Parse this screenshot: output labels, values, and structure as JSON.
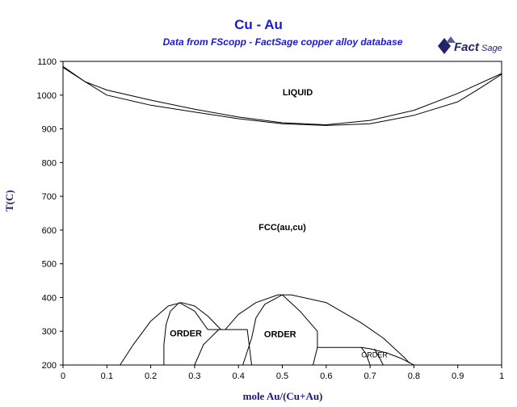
{
  "title": "Cu - Au",
  "subtitle": "Data from FScopp - FactSage copper alloy database",
  "logo": {
    "text": "FactSage",
    "icon": "factsage-logo-icon"
  },
  "chart_data": {
    "type": "line",
    "xlabel": "mole Au/(Cu+Au)",
    "ylabel": "T(C)",
    "xlim": [
      0,
      1
    ],
    "ylim": [
      200,
      1100
    ],
    "x_ticks": [
      "0",
      "0.1",
      "0.2",
      "0.3",
      "0.4",
      "0.5",
      "0.6",
      "0.7",
      "0.8",
      "0.9",
      "1"
    ],
    "y_ticks": [
      "200",
      "300",
      "400",
      "500",
      "600",
      "700",
      "800",
      "900",
      "1000",
      "1100"
    ],
    "grid": false,
    "line_color": "#000000",
    "region_labels": [
      {
        "text": "LIQUID",
        "x": 0.535,
        "y": 1000
      },
      {
        "text": "FCC(au,cu)",
        "x": 0.5,
        "y": 600
      },
      {
        "text": "ORDER",
        "x": 0.28,
        "y": 285
      },
      {
        "text": "ORDER",
        "x": 0.495,
        "y": 283
      },
      {
        "text": "ORDER",
        "x": 0.71,
        "y": 223
      }
    ],
    "series": [
      {
        "points": [
          [
            0,
            1085
          ],
          [
            0.05,
            1040
          ],
          [
            0.1,
            1015
          ],
          [
            0.2,
            985
          ],
          [
            0.3,
            958
          ],
          [
            0.4,
            935
          ],
          [
            0.5,
            918
          ],
          [
            0.6,
            912
          ],
          [
            0.7,
            925
          ],
          [
            0.8,
            955
          ],
          [
            0.9,
            1005
          ],
          [
            1,
            1064
          ]
        ]
      },
      {
        "points": [
          [
            0,
            1082
          ],
          [
            0.02,
            1065
          ],
          [
            0.05,
            1040
          ],
          [
            0.1,
            1000
          ],
          [
            0.2,
            970
          ],
          [
            0.3,
            950
          ],
          [
            0.4,
            930
          ],
          [
            0.5,
            915
          ],
          [
            0.6,
            910
          ],
          [
            0.7,
            915
          ],
          [
            0.8,
            940
          ],
          [
            0.9,
            980
          ],
          [
            0.95,
            1020
          ],
          [
            1,
            1062
          ]
        ]
      },
      {
        "points": [
          [
            0.13,
            200
          ],
          [
            0.16,
            260
          ],
          [
            0.2,
            330
          ],
          [
            0.24,
            375
          ],
          [
            0.27,
            385
          ],
          [
            0.3,
            375
          ],
          [
            0.33,
            345
          ],
          [
            0.36,
            305
          ]
        ]
      },
      {
        "points": [
          [
            0.23,
            200
          ],
          [
            0.23,
            260
          ],
          [
            0.235,
            320
          ],
          [
            0.245,
            360
          ],
          [
            0.265,
            385
          ]
        ]
      },
      {
        "points": [
          [
            0.265,
            385
          ],
          [
            0.3,
            360
          ],
          [
            0.33,
            305
          ],
          [
            0.42,
            305
          ],
          [
            0.43,
            200
          ]
        ]
      },
      {
        "points": [
          [
            0.37,
            305
          ],
          [
            0.4,
            350
          ],
          [
            0.44,
            385
          ],
          [
            0.49,
            408
          ],
          [
            0.52,
            408
          ],
          [
            0.6,
            385
          ],
          [
            0.68,
            325
          ],
          [
            0.73,
            280
          ],
          [
            0.78,
            220
          ],
          [
            0.79,
            205
          ]
        ]
      },
      {
        "points": [
          [
            0.3,
            200
          ],
          [
            0.32,
            260
          ],
          [
            0.355,
            305
          ]
        ]
      },
      {
        "points": [
          [
            0.41,
            200
          ],
          [
            0.43,
            280
          ],
          [
            0.44,
            340
          ],
          [
            0.46,
            380
          ],
          [
            0.5,
            408
          ]
        ]
      },
      {
        "points": [
          [
            0.5,
            408
          ],
          [
            0.54,
            360
          ],
          [
            0.58,
            300
          ],
          [
            0.58,
            252
          ],
          [
            0.57,
            200
          ]
        ]
      },
      {
        "points": [
          [
            0.58,
            252
          ],
          [
            0.68,
            252
          ],
          [
            0.7,
            248
          ],
          [
            0.74,
            235
          ],
          [
            0.77,
            220
          ],
          [
            0.8,
            200
          ]
        ]
      },
      {
        "points": [
          [
            0.68,
            252
          ],
          [
            0.69,
            235
          ],
          [
            0.7,
            200
          ]
        ]
      },
      {
        "points": [
          [
            0.71,
            248
          ],
          [
            0.72,
            225
          ],
          [
            0.73,
            200
          ]
        ]
      }
    ]
  }
}
